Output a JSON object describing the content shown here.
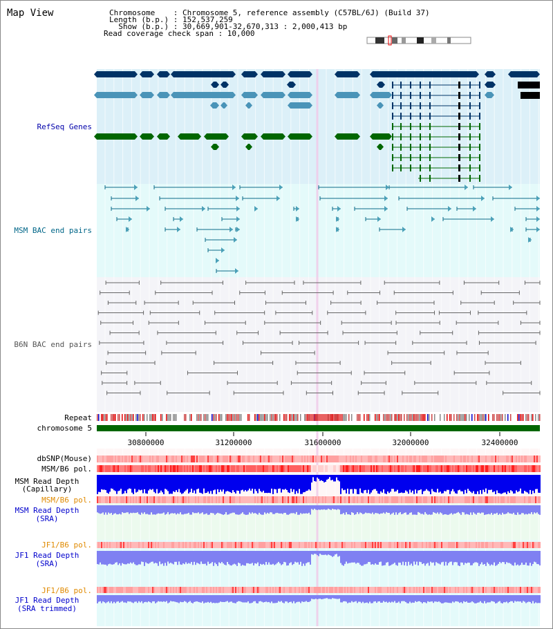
{
  "page": {
    "title": "Map View",
    "info": {
      "chromosome": "Chromosome    : Chromosome 5, reference assembly (C57BL/6J) (Build 37)",
      "length": "Length (b.p.) : 152,537,259",
      "show": "  Show (b.p.) : 30,669,901-32,670,313 : 2,000,413 bp",
      "span": "Read coverage check span : 10,000"
    }
  },
  "tracks": {
    "refseq": "RefSeq Genes",
    "msm_bac": "MSM BAC end pairs",
    "b6n_bac": "B6N BAC end pairs",
    "repeat": "Repeat",
    "chromosome": "chromosome 5",
    "dbsnp": "dbSNP(Mouse)",
    "msm_b6_pol_1": "MSM/B6 pol.",
    "msm_read_depth_cap_1": "MSM Read Depth",
    "msm_read_depth_cap_2": "(Capillary)",
    "msm_b6_pol_2": "MSM/B6 pol.",
    "msm_read_depth_sra_1": "MSM Read Depth",
    "msm_read_depth_sra_2": "(SRA)",
    "jf1_b6_pol_1": "JF1/B6 pol.",
    "jf1_read_depth_sra_1": "JF1 Read Depth",
    "jf1_read_depth_sra_2": "(SRA)",
    "jf1_b6_pol_2": "JF1/B6 pol.",
    "jf1_read_depth_trim_1": "JF1 Read Depth",
    "jf1_read_depth_trim_2": "(SRA trimmed)"
  },
  "axis": {
    "ticks": [
      "30800000",
      "31200000",
      "31600000",
      "32000000",
      "32400000"
    ]
  },
  "colors": {
    "refseq_bg": "#dcf0f8",
    "msm_bg": "#e4fafa",
    "b6n_bg": "#f4f4f8",
    "msm_label": "#006688",
    "refseq_label": "#0000aa",
    "orange_label": "#e08a00",
    "blue_label": "#0000cc",
    "gene_dark": "#003366",
    "gene_mid": "#4a94b8",
    "gene_green": "#006600",
    "chrom_green": "#006600",
    "depth_blue": "#0000ee",
    "depth_lavender": "#7f80f2"
  },
  "icons": {
    "karyotype": "chromosome-ideogram-icon"
  }
}
